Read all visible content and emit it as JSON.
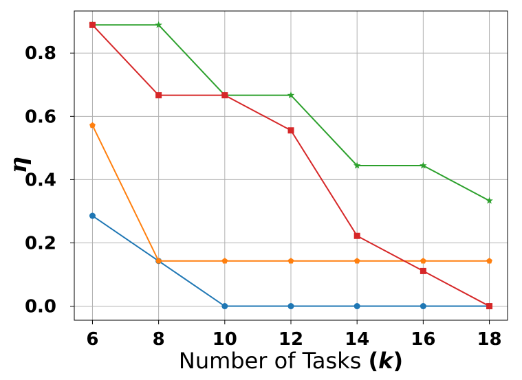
{
  "chart_data": {
    "type": "line",
    "xlabel": {
      "prefix": "Number of Tasks ",
      "bold": "(",
      "italic": "k",
      "bold_close": ")"
    },
    "ylabel": "η",
    "x": [
      6,
      8,
      10,
      12,
      14,
      16,
      18
    ],
    "xticks": [
      "6",
      "8",
      "10",
      "12",
      "14",
      "16",
      "18"
    ],
    "yticks": [
      {
        "value": 0.0,
        "label": "0.0"
      },
      {
        "value": 0.2,
        "label": "0.2"
      },
      {
        "value": 0.4,
        "label": "0.4"
      },
      {
        "value": 0.6,
        "label": "0.6"
      },
      {
        "value": 0.8,
        "label": "0.8"
      }
    ],
    "xlim": [
      5.45,
      18.55
    ],
    "ylim": [
      -0.0444,
      0.933
    ],
    "grid": true,
    "series": [
      {
        "color": "#1f77b4",
        "marker": "circle",
        "values": [
          0.2857,
          0.1429,
          0.0,
          0.0,
          0.0,
          0.0,
          0.0
        ]
      },
      {
        "color": "#ff7f0e",
        "marker": "pentagon",
        "values": [
          0.5714,
          0.1429,
          0.1429,
          0.1429,
          0.1429,
          0.1429,
          0.1429
        ]
      },
      {
        "color": "#2ca02c",
        "marker": "star",
        "values": [
          0.8889,
          0.8889,
          0.6667,
          0.6667,
          0.4444,
          0.4444,
          0.3333
        ]
      },
      {
        "color": "#d62728",
        "marker": "square",
        "values": [
          0.8889,
          0.6667,
          0.6667,
          0.5556,
          0.2222,
          0.1111,
          0.0
        ]
      }
    ]
  }
}
